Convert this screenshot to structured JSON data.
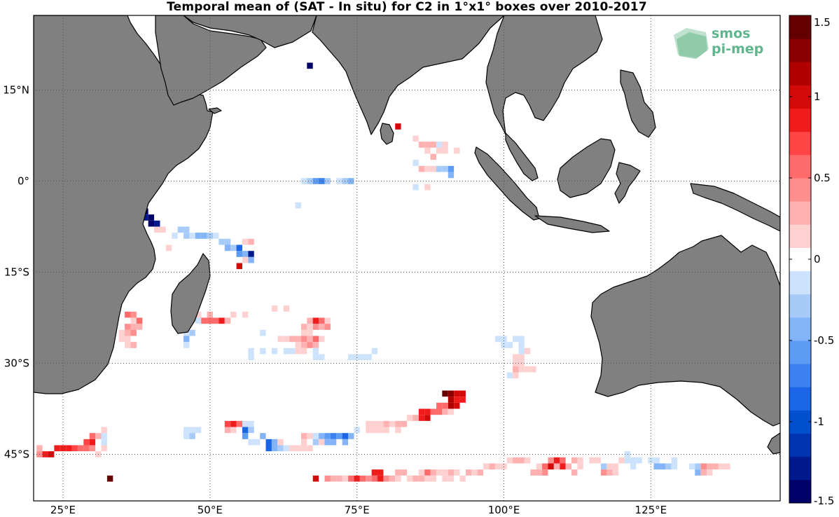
{
  "title": "Temporal mean of (SAT - In situ) for C2 in 1°x1° boxes over 2010-2017",
  "logo": {
    "line1": "smos",
    "line2": "pi-mep",
    "color": "#5fb58c"
  },
  "colors": {
    "land": "#808080",
    "coast": "#000000",
    "ocean": "#ffffff",
    "grid": "#555555"
  },
  "lat_labels": [
    {
      "lat": 15,
      "text": "15°N"
    },
    {
      "lat": 0,
      "text": "0°"
    },
    {
      "lat": -15,
      "text": "15°S"
    },
    {
      "lat": -30,
      "text": "30°S"
    },
    {
      "lat": -45,
      "text": "45°S"
    }
  ],
  "lon_labels": [
    {
      "lon": 25,
      "text": "25°E"
    },
    {
      "lon": 50,
      "text": "50°E"
    },
    {
      "lon": 75,
      "text": "75°E"
    },
    {
      "lon": 100,
      "text": "100°E"
    },
    {
      "lon": 125,
      "text": "125°E"
    }
  ],
  "colorbar": {
    "min": -1.5,
    "max": 1.5,
    "ticks": [
      {
        "value": 1.5,
        "text": "1.5"
      },
      {
        "value": 1,
        "text": "1"
      },
      {
        "value": 0.5,
        "text": "0.5"
      },
      {
        "value": 0,
        "text": "0"
      },
      {
        "value": -0.5,
        "text": "-0.5"
      },
      {
        "value": -1,
        "text": "-1"
      },
      {
        "value": -1.5,
        "text": "-1.5"
      }
    ],
    "colors": [
      "#00006a",
      "#00198d",
      "#0034b0",
      "#0050d0",
      "#1a66e6",
      "#3b82f0",
      "#5d9cf4",
      "#82b4f7",
      "#a7cbf9",
      "#cde2fc",
      "#ffffff",
      "#ffd0d0",
      "#ffb0b0",
      "#ff8e8e",
      "#ff6b6b",
      "#ff4545",
      "#f01c1c",
      "#d40a0a",
      "#b00000",
      "#8a0000",
      "#640000"
    ]
  },
  "cells": [
    [
      67,
      19,
      -1.4
    ],
    [
      82,
      9,
      1.0
    ],
    [
      85,
      7,
      0.15
    ],
    [
      86,
      6,
      0.3
    ],
    [
      87,
      6,
      0.3
    ],
    [
      88,
      6,
      0.25
    ],
    [
      89,
      5,
      0.2
    ],
    [
      90,
      6,
      0.15
    ],
    [
      87,
      5,
      0.2
    ],
    [
      88,
      4,
      0.3
    ],
    [
      90,
      5,
      0.2
    ],
    [
      85,
      3,
      -0.1
    ],
    [
      86,
      2,
      0.25
    ],
    [
      87,
      2,
      0.2
    ],
    [
      88,
      2,
      0.2
    ],
    [
      89,
      2,
      -0.3
    ],
    [
      90,
      2,
      -0.3
    ],
    [
      91,
      2,
      -0.6
    ],
    [
      91,
      1,
      -0.4
    ],
    [
      89,
      6,
      -0.1
    ],
    [
      92,
      5,
      0.15
    ],
    [
      66,
      0,
      -0.2
    ],
    [
      67,
      0,
      -0.3
    ],
    [
      68,
      0,
      -0.6
    ],
    [
      69,
      0,
      -0.7
    ],
    [
      70,
      0,
      -0.3
    ],
    [
      72,
      0,
      -0.2
    ],
    [
      73,
      0,
      -0.3
    ],
    [
      74,
      0,
      -0.4
    ],
    [
      85,
      -1,
      -0.2
    ],
    [
      87,
      -1,
      0.2
    ],
    [
      65,
      -4,
      -0.1
    ],
    [
      39,
      -5,
      -1.4
    ],
    [
      39,
      -6,
      -1.3
    ],
    [
      40,
      -6,
      -1.5
    ],
    [
      40,
      -7,
      -1.5
    ],
    [
      41,
      -7,
      -1.3
    ],
    [
      41,
      -8,
      0.15
    ],
    [
      42,
      -8,
      0.15
    ],
    [
      45,
      -8,
      -0.3
    ],
    [
      46,
      -8,
      -0.25
    ],
    [
      46,
      -9,
      -0.3
    ],
    [
      47,
      -9,
      -0.1
    ],
    [
      48,
      -9,
      -0.4
    ],
    [
      49,
      -9,
      -0.5
    ],
    [
      50,
      -9,
      -0.3
    ],
    [
      51,
      -9,
      -0.2
    ],
    [
      52,
      -10,
      -0.3
    ],
    [
      53,
      -10,
      -0.3
    ],
    [
      53,
      -11,
      -0.5
    ],
    [
      54,
      -11,
      -0.3
    ],
    [
      55,
      -11,
      -0.8
    ],
    [
      55,
      -12,
      -0.6
    ],
    [
      56,
      -12,
      -0.4
    ],
    [
      57,
      -12,
      -1.3
    ],
    [
      56,
      -10,
      0.2
    ],
    [
      57,
      -10,
      0.25
    ],
    [
      56,
      -13,
      0.15
    ],
    [
      57,
      -13,
      -0.4
    ],
    [
      55,
      -14,
      1.0
    ],
    [
      44,
      -9,
      -0.2
    ],
    [
      43,
      -11,
      0.1
    ],
    [
      33,
      -21,
      0.15
    ],
    [
      33,
      -22,
      -0.2
    ],
    [
      34,
      -21,
      -0.3
    ],
    [
      34,
      -22,
      0.2
    ],
    [
      36,
      -22,
      0.5
    ],
    [
      37,
      -22,
      0.4
    ],
    [
      37,
      -23,
      0.2
    ],
    [
      38,
      -23,
      0.6
    ],
    [
      38,
      -24,
      0.3
    ],
    [
      36,
      -24,
      0.4
    ],
    [
      37,
      -24,
      0.3
    ],
    [
      35,
      -25,
      0.2
    ],
    [
      36,
      -25,
      0.3
    ],
    [
      37,
      -25,
      0.4
    ],
    [
      35,
      -26,
      0.15
    ],
    [
      36,
      -26,
      0.2
    ],
    [
      36,
      -27,
      0.2
    ],
    [
      37,
      -27,
      0.25
    ],
    [
      46,
      -25,
      -0.1
    ],
    [
      46,
      -26,
      -0.4
    ],
    [
      47,
      -25,
      -0.3
    ],
    [
      46,
      -27,
      -0.2
    ],
    [
      48,
      -23,
      -0.1
    ],
    [
      48,
      -22,
      0.2
    ],
    [
      49,
      -23,
      0.6
    ],
    [
      50,
      -22,
      0.3
    ],
    [
      50,
      -23,
      0.5
    ],
    [
      51,
      -23,
      0.5
    ],
    [
      52,
      -23,
      0.9
    ],
    [
      53,
      -23,
      0.25
    ],
    [
      54,
      -22,
      0.2
    ],
    [
      56,
      -22,
      0.15
    ],
    [
      61,
      -21,
      0.2
    ],
    [
      63,
      -21,
      0.2
    ],
    [
      67,
      -23,
      0.3
    ],
    [
      68,
      -23,
      0.8
    ],
    [
      69,
      -23,
      0.5
    ],
    [
      68,
      -24,
      0.4
    ],
    [
      69,
      -24,
      0.3
    ],
    [
      70,
      -23,
      0.2
    ],
    [
      70,
      -24,
      0.4
    ],
    [
      66,
      -24,
      0.25
    ],
    [
      67,
      -24,
      0.2
    ],
    [
      66,
      -25,
      0.15
    ],
    [
      67,
      -25,
      0.2
    ],
    [
      62,
      -26,
      0.15
    ],
    [
      63,
      -26,
      0.2
    ],
    [
      64,
      -26,
      0.3
    ],
    [
      65,
      -26,
      0.25
    ],
    [
      66,
      -26,
      0.4
    ],
    [
      67,
      -26,
      0.3
    ],
    [
      68,
      -26,
      0.5
    ],
    [
      69,
      -26,
      0.2
    ],
    [
      66,
      -27,
      0.3
    ],
    [
      67,
      -27,
      0.4
    ],
    [
      68,
      -27,
      0.25
    ],
    [
      65,
      -27,
      0.15
    ],
    [
      65,
      -28,
      0.2
    ],
    [
      66,
      -28,
      0.15
    ],
    [
      57,
      -28,
      -0.1
    ],
    [
      57,
      -29,
      -0.15
    ],
    [
      59,
      -28,
      -0.1
    ],
    [
      61,
      -28,
      -0.15
    ],
    [
      63,
      -28,
      -0.2
    ],
    [
      64,
      -28,
      -0.1
    ],
    [
      68,
      -28,
      -0.1
    ],
    [
      68,
      -29,
      -0.1
    ],
    [
      69,
      -29,
      -0.15
    ],
    [
      59,
      -25,
      -0.1
    ],
    [
      74,
      -29,
      -0.1
    ],
    [
      75,
      -29,
      -0.1
    ],
    [
      76,
      -29,
      -0.2
    ],
    [
      77,
      -29,
      -0.1
    ],
    [
      78,
      -28,
      -0.2
    ],
    [
      99,
      -26,
      -0.1
    ],
    [
      100,
      -26,
      -0.2
    ],
    [
      100,
      -27,
      -0.15
    ],
    [
      101,
      -27,
      -0.1
    ],
    [
      102,
      -26,
      -0.1
    ],
    [
      103,
      -26,
      -0.15
    ],
    [
      103,
      -27,
      -0.2
    ],
    [
      103,
      -28,
      -0.1
    ],
    [
      102,
      -29,
      0.2
    ],
    [
      102,
      -30,
      0.15
    ],
    [
      103,
      -29,
      0.2
    ],
    [
      104,
      -31,
      0.2
    ],
    [
      105,
      -31,
      0.2
    ],
    [
      102,
      -31,
      0.3
    ],
    [
      101,
      -32,
      -0.2
    ],
    [
      102,
      -32,
      0.15
    ],
    [
      103,
      -31,
      0.15
    ],
    [
      104,
      -28,
      0.15
    ],
    [
      103,
      -30,
      0.1
    ],
    [
      90,
      -35,
      1.4
    ],
    [
      91,
      -35,
      1.3
    ],
    [
      92,
      -35,
      1.0
    ],
    [
      91,
      -36,
      1.1
    ],
    [
      92,
      -36,
      0.9
    ],
    [
      93,
      -36,
      0.8
    ],
    [
      93,
      -35,
      1.0
    ],
    [
      91,
      -37,
      1.2
    ],
    [
      92,
      -37,
      1.0
    ],
    [
      90,
      -37,
      0.6
    ],
    [
      89,
      -37,
      0.5
    ],
    [
      88,
      -38,
      0.6
    ],
    [
      89,
      -38,
      0.5
    ],
    [
      87,
      -38,
      0.9
    ],
    [
      86,
      -38,
      0.9
    ],
    [
      86,
      -39,
      0.8
    ],
    [
      87,
      -39,
      1.0
    ],
    [
      90,
      -38,
      0.3
    ],
    [
      91,
      -38,
      0.15
    ],
    [
      84,
      -39,
      0.2
    ],
    [
      85,
      -39,
      0.3
    ],
    [
      83,
      -40,
      0.3
    ],
    [
      82,
      -40,
      0.3
    ],
    [
      81,
      -40,
      0.2
    ],
    [
      80,
      -40,
      0.25
    ],
    [
      79,
      -40,
      0.2
    ],
    [
      78,
      -40,
      0.15
    ],
    [
      77,
      -40,
      0.15
    ],
    [
      78,
      -41,
      0.2
    ],
    [
      79,
      -41,
      0.2
    ],
    [
      82,
      -41,
      0.15
    ],
    [
      80,
      -41,
      0.2
    ],
    [
      77,
      -41,
      0.1
    ],
    [
      53,
      -40,
      0.7
    ],
    [
      54,
      -40,
      0.8
    ],
    [
      55,
      -40,
      0.5
    ],
    [
      56,
      -40,
      -0.2
    ],
    [
      57,
      -40,
      -0.1
    ],
    [
      53,
      -41,
      0.3
    ],
    [
      54,
      -41,
      0.2
    ],
    [
      56,
      -41,
      -0.8
    ],
    [
      57,
      -41,
      -0.3
    ],
    [
      56,
      -42,
      -0.6
    ],
    [
      59,
      -42,
      -0.4
    ],
    [
      60,
      -43,
      -0.8
    ],
    [
      60,
      -44,
      -0.9
    ],
    [
      61,
      -43,
      -0.5
    ],
    [
      61,
      -44,
      -0.4
    ],
    [
      62,
      -44,
      -0.3
    ],
    [
      62,
      -43,
      0.2
    ],
    [
      63,
      -44,
      -0.1
    ],
    [
      64,
      -44,
      0.2
    ],
    [
      65,
      -44,
      0.2
    ],
    [
      66,
      -42,
      0.3
    ],
    [
      66,
      -43,
      0.2
    ],
    [
      67,
      -42,
      0.2
    ],
    [
      68,
      -42,
      -0.2
    ],
    [
      68,
      -43,
      -0.3
    ],
    [
      69,
      -42,
      -0.5
    ],
    [
      70,
      -42,
      -0.6
    ],
    [
      70,
      -43,
      -0.4
    ],
    [
      71,
      -42,
      -0.7
    ],
    [
      71,
      -43,
      -0.5
    ],
    [
      72,
      -42,
      -0.6
    ],
    [
      73,
      -42,
      -0.8
    ],
    [
      73,
      -43,
      -0.4
    ],
    [
      74,
      -42,
      -0.5
    ],
    [
      75,
      -41,
      -0.2
    ],
    [
      69,
      -43,
      0.15
    ],
    [
      67,
      -44,
      0.2
    ],
    [
      66,
      -44,
      0.15
    ],
    [
      58,
      -43,
      -0.2
    ],
    [
      57,
      -43,
      -0.15
    ],
    [
      46,
      -41,
      -0.1
    ],
    [
      47,
      -41,
      -0.2
    ],
    [
      48,
      -41,
      -0.2
    ],
    [
      46,
      -42,
      -0.2
    ],
    [
      47,
      -42,
      -0.3
    ],
    [
      24,
      -44,
      0.8
    ],
    [
      25,
      -44,
      0.9
    ],
    [
      26,
      -44,
      0.9
    ],
    [
      27,
      -44,
      0.7
    ],
    [
      28,
      -44,
      0.6
    ],
    [
      29,
      -44,
      0.6
    ],
    [
      30,
      -44,
      0.4
    ],
    [
      29,
      -43,
      0.7
    ],
    [
      30,
      -43,
      0.8
    ],
    [
      30,
      -42,
      0.5
    ],
    [
      31,
      -42,
      0.3
    ],
    [
      32,
      -42,
      -0.2
    ],
    [
      32,
      -43,
      -0.1
    ],
    [
      32,
      -41,
      0.2
    ],
    [
      31,
      -45,
      0.2
    ],
    [
      32,
      -44,
      0.15
    ],
    [
      21,
      -44,
      0.3
    ],
    [
      21,
      -45,
      0.4
    ],
    [
      22,
      -45,
      0.9
    ],
    [
      23,
      -45,
      1.0
    ],
    [
      33,
      -49,
      1.4
    ],
    [
      108,
      -46,
      0.4
    ],
    [
      109,
      -46,
      0.9
    ],
    [
      110,
      -46,
      0.5
    ],
    [
      110,
      -47,
      0.8
    ],
    [
      111,
      -47,
      0.3
    ],
    [
      112,
      -46,
      0.3
    ],
    [
      113,
      -46,
      0.2
    ],
    [
      106,
      -47,
      0.2
    ],
    [
      107,
      -47,
      0.6
    ],
    [
      108,
      -47,
      1.0
    ],
    [
      109,
      -47,
      0.3
    ],
    [
      105,
      -48,
      0.3
    ],
    [
      106,
      -48,
      0.3
    ],
    [
      107,
      -48,
      0.4
    ],
    [
      112,
      -48,
      0.3
    ],
    [
      113,
      -47,
      0.2
    ],
    [
      115,
      -46,
      0.15
    ],
    [
      116,
      -46,
      0.2
    ],
    [
      117,
      -47,
      -0.3
    ],
    [
      117,
      -48,
      0.4
    ],
    [
      118,
      -47,
      0.2
    ],
    [
      118,
      -48,
      0.3
    ],
    [
      119,
      -47,
      0.2
    ],
    [
      119,
      -48,
      0.15
    ],
    [
      120,
      -46,
      0.2
    ],
    [
      121,
      -46,
      -0.2
    ],
    [
      121,
      -45,
      -0.1
    ],
    [
      122,
      -46,
      -0.15
    ],
    [
      122,
      -47,
      -0.2
    ],
    [
      123,
      -46,
      -0.1
    ],
    [
      125,
      -46,
      -0.1
    ],
    [
      126,
      -46,
      -0.15
    ],
    [
      126,
      -47,
      -0.4
    ],
    [
      127,
      -47,
      -0.4
    ],
    [
      128,
      -47,
      -0.3
    ],
    [
      129,
      -46,
      -0.2
    ],
    [
      129,
      -47,
      -0.1
    ],
    [
      132,
      -47,
      -0.2
    ],
    [
      133,
      -47,
      -0.3
    ],
    [
      133,
      -48,
      -0.5
    ],
    [
      134,
      -47,
      0.4
    ],
    [
      135,
      -47,
      0.3
    ],
    [
      136,
      -47,
      0.3
    ],
    [
      137,
      -47,
      0.2
    ],
    [
      138,
      -47,
      0.2
    ],
    [
      134,
      -48,
      0.3
    ],
    [
      135,
      -48,
      0.2
    ],
    [
      101,
      -46,
      0.2
    ],
    [
      102,
      -46,
      0.3
    ],
    [
      103,
      -46,
      0.3
    ],
    [
      104,
      -46,
      0.2
    ],
    [
      97,
      -47,
      0.2
    ],
    [
      98,
      -47,
      0.3
    ],
    [
      99,
      -47,
      0.2
    ],
    [
      100,
      -47,
      0.2
    ],
    [
      94,
      -48,
      0.3
    ],
    [
      95,
      -48,
      0.2
    ],
    [
      96,
      -48,
      0.3
    ],
    [
      91,
      -48,
      0.3
    ],
    [
      92,
      -48,
      0.2
    ],
    [
      90,
      -48,
      0.15
    ],
    [
      86,
      -48,
      0.2
    ],
    [
      87,
      -48,
      0.5
    ],
    [
      88,
      -48,
      0.3
    ],
    [
      89,
      -48,
      0.2
    ],
    [
      78,
      -48,
      0.9
    ],
    [
      79,
      -48,
      0.9
    ],
    [
      82,
      -48,
      0.3
    ],
    [
      83,
      -48,
      0.3
    ],
    [
      73,
      -49,
      0.2
    ],
    [
      74,
      -49,
      0.5
    ],
    [
      75,
      -49,
      0.9
    ],
    [
      76,
      -49,
      0.6
    ],
    [
      77,
      -49,
      0.4
    ],
    [
      78,
      -49,
      0.5
    ],
    [
      79,
      -49,
      0.8
    ],
    [
      80,
      -49,
      0.4
    ],
    [
      81,
      -49,
      0.3
    ],
    [
      82,
      -49,
      0.2
    ],
    [
      84,
      -49,
      0.2
    ],
    [
      85,
      -49,
      0.3
    ],
    [
      86,
      -49,
      0.25
    ],
    [
      87,
      -49,
      0.2
    ],
    [
      88,
      -49,
      0.15
    ],
    [
      70,
      -49,
      0.4
    ],
    [
      71,
      -49,
      0.3
    ],
    [
      72,
      -49,
      0.25
    ],
    [
      68,
      -49,
      1.0
    ],
    [
      90,
      -49,
      0.15
    ],
    [
      91,
      -49,
      0.2
    ],
    [
      93,
      -49,
      0.2
    ]
  ]
}
